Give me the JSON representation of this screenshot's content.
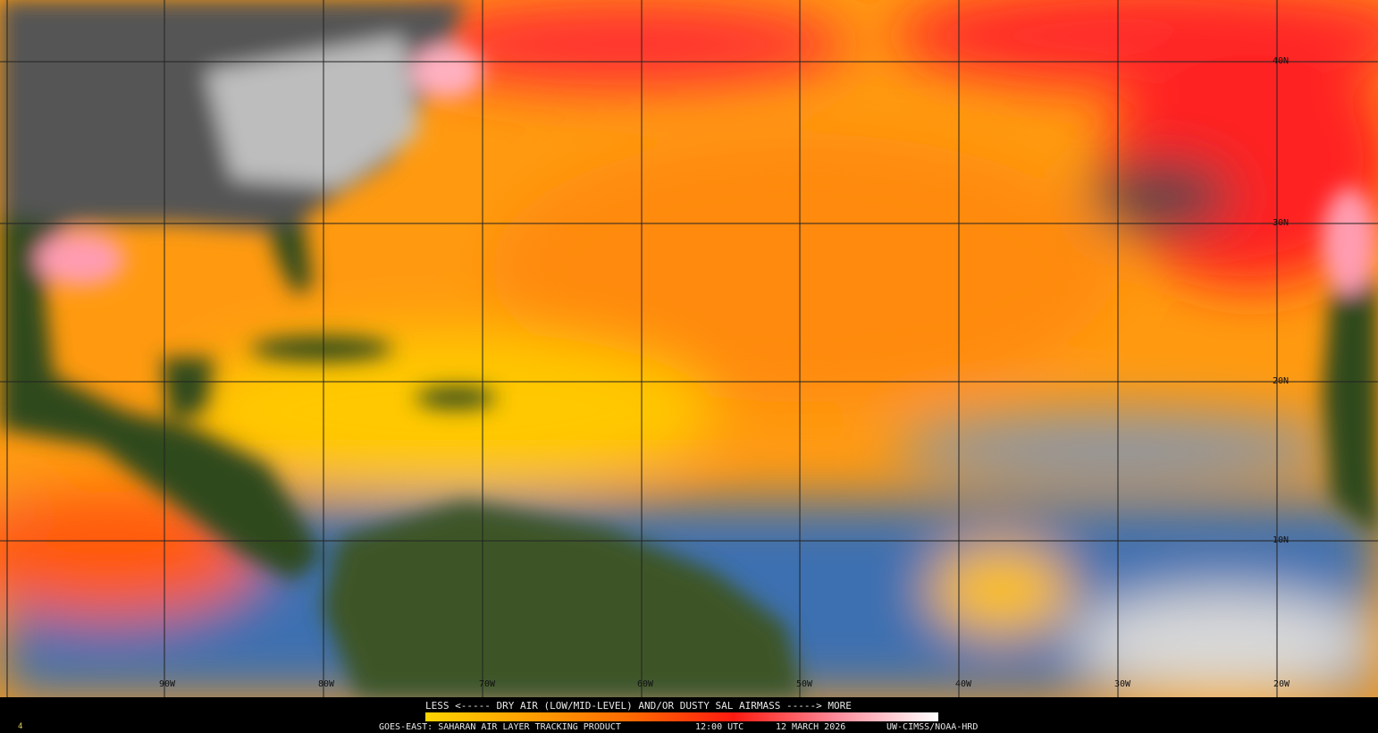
{
  "map": {
    "product": "GOES-EAST: SAHARAN AIR LAYER TRACKING PRODUCT",
    "time": "12:00 UTC",
    "date": "12 MARCH 2026",
    "credit": "UW-CIMSS/NOAA-HRD",
    "scale_label": "LESS <----- DRY AIR (LOW/MID-LEVEL) AND/OR DUSTY SAL AIRMASS -----> MORE",
    "scale_colors": [
      "#ffd400",
      "#ffa000",
      "#ff6a00",
      "#ff1a10",
      "#ff8a9a",
      "#ffffff"
    ],
    "corner_mark": "4",
    "longitude_labels": [
      "90W",
      "80W",
      "70W",
      "60W",
      "50W",
      "40W",
      "30W",
      "20W"
    ],
    "latitude_labels": [
      "40N",
      "30N",
      "20N",
      "10N"
    ]
  }
}
